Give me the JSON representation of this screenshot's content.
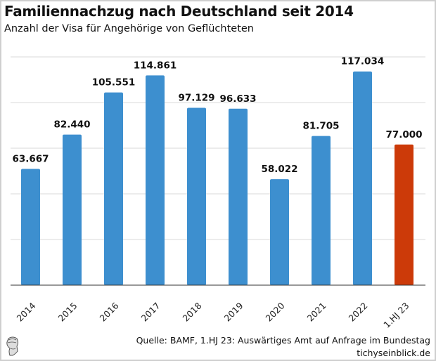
{
  "title": "Familiennachzug nach Deutschland seit 2014",
  "subtitle": "Anzahl der Visa für Angehörige von Geflüchteten",
  "source": "Quelle: BAMF, 1.HJ 23: Auswärtiges Amt auf Anfrage im Bundestag",
  "site": "tichyseinblick.de",
  "colors": {
    "bar": "#3d8fcf",
    "highlight": "#cc3a09",
    "grid": "#d9d9d9"
  },
  "chart_data": {
    "type": "bar",
    "title": "Familiennachzug nach Deutschland seit 2014",
    "subtitle": "Anzahl der Visa für Angehörige von Geflüchteten",
    "categories": [
      "2014",
      "2015",
      "2016",
      "2017",
      "2018",
      "2019",
      "2020",
      "2021",
      "2022",
      "1.HJ 23"
    ],
    "values": [
      63667,
      82440,
      105551,
      114861,
      97129,
      96633,
      58022,
      81705,
      117034,
      77000
    ],
    "labels": [
      "63.667",
      "82.440",
      "105.551",
      "114.861",
      "97.129",
      "96.633",
      "58.022",
      "81.705",
      "117.034",
      "77.000"
    ],
    "highlight_index": 9,
    "xlabel": "",
    "ylabel": "",
    "ylim": [
      0,
      125000
    ],
    "grid_step": 25000,
    "grid": true
  }
}
